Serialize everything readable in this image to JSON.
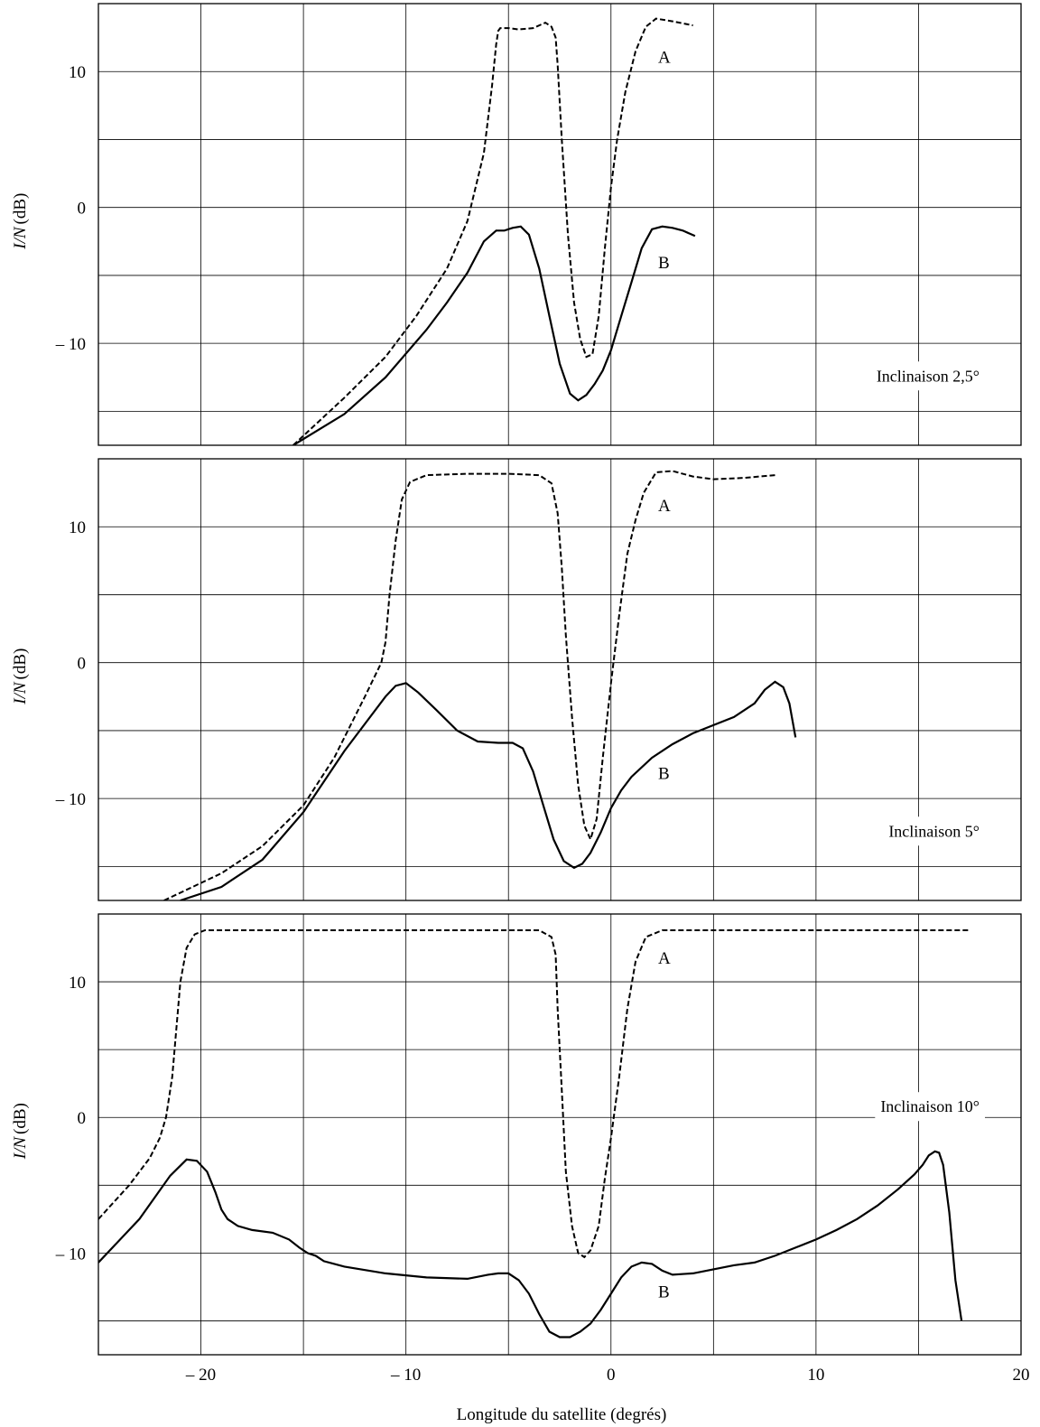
{
  "figure": {
    "xlabel": "Longitude du satellite (degrés)",
    "x_ticks": [
      "– 20",
      "– 10",
      "0",
      "10",
      "20"
    ],
    "x_tick_values": [
      -20,
      -10,
      0,
      10,
      20
    ],
    "y_ticks": [
      "10",
      "0",
      "– 10"
    ],
    "y_tick_values": [
      10,
      0,
      -10
    ]
  },
  "chart_data": [
    {
      "type": "line",
      "ylabel_italic": "I/N",
      "ylabel_unit": "(dB)",
      "annotation": "Inclinaison 2,5°",
      "xlim": [
        -25,
        20
      ],
      "ylim": [
        -17.5,
        15
      ],
      "grid": true,
      "series": [
        {
          "name": "A",
          "style": "dashed",
          "x": [
            -15.5,
            -13,
            -11,
            -9.5,
            -8,
            -7,
            -6.2,
            -5.8,
            -5.6,
            -5.5,
            -5.4,
            -5,
            -4.5,
            -3.8,
            -3.2,
            -2.9,
            -2.7,
            -2.6,
            -2.4,
            -2.1,
            -1.8,
            -1.5,
            -1.2,
            -0.9,
            -0.6,
            -0.3,
            0,
            0.3,
            0.7,
            1.2,
            1.7,
            2.2,
            3,
            4
          ],
          "y": [
            -17.5,
            -14,
            -11,
            -8,
            -4.5,
            -1,
            4,
            9,
            12,
            13,
            13.2,
            13.2,
            13.1,
            13.2,
            13.6,
            13.3,
            12.5,
            10.5,
            5,
            -2,
            -7,
            -9.7,
            -11,
            -10.8,
            -8,
            -3,
            1.5,
            5,
            8.5,
            11.5,
            13.3,
            13.9,
            13.7,
            13.4
          ]
        },
        {
          "name": "B",
          "style": "solid",
          "x": [
            -15.5,
            -13,
            -11,
            -9,
            -8,
            -7,
            -6.2,
            -5.6,
            -5.2,
            -4.8,
            -4.4,
            -4,
            -3.5,
            -3,
            -2.5,
            -2,
            -1.6,
            -1.2,
            -0.8,
            -0.4,
            0,
            0.5,
            1,
            1.5,
            2,
            2.5,
            3,
            3.5,
            4.1
          ],
          "y": [
            -17.5,
            -15.2,
            -12.5,
            -9,
            -7,
            -4.8,
            -2.5,
            -1.7,
            -1.7,
            -1.5,
            -1.4,
            -2,
            -4.5,
            -8,
            -11.5,
            -13.7,
            -14.2,
            -13.8,
            -13,
            -12,
            -10.5,
            -8,
            -5.5,
            -3,
            -1.6,
            -1.4,
            -1.5,
            -1.7,
            -2.1
          ]
        }
      ],
      "labels": [
        {
          "text": "A",
          "x": 2.3,
          "y": 11.1
        },
        {
          "text": "B",
          "x": 2.3,
          "y": -4
        }
      ]
    },
    {
      "type": "line",
      "ylabel_italic": "I/N",
      "ylabel_unit": "(dB)",
      "annotation": "Inclinaison 5°",
      "xlim": [
        -25,
        20
      ],
      "ylim": [
        -17.5,
        15
      ],
      "grid": true,
      "series": [
        {
          "name": "A",
          "style": "dashed",
          "x": [
            -21.8,
            -19,
            -17,
            -15,
            -13.5,
            -12,
            -11.2,
            -11,
            -10.8,
            -10.5,
            -10.2,
            -9.8,
            -9,
            -7,
            -5,
            -3.5,
            -2.9,
            -2.6,
            -2.4,
            -2.2,
            -1.9,
            -1.6,
            -1.3,
            -1,
            -0.7,
            -0.4,
            0,
            0.4,
            0.8,
            1.2,
            1.6,
            2.2,
            3,
            4,
            5,
            6.5,
            8
          ],
          "y": [
            -17.5,
            -15.5,
            -13.5,
            -10.5,
            -7,
            -2.5,
            0,
            1.5,
            5,
            9,
            12,
            13.3,
            13.8,
            13.9,
            13.9,
            13.8,
            13.2,
            11,
            7,
            2,
            -4,
            -9,
            -12,
            -13,
            -11.5,
            -7,
            -1.5,
            3.5,
            8,
            10.5,
            12.5,
            14,
            14.1,
            13.7,
            13.5,
            13.6,
            13.8
          ]
        },
        {
          "name": "B",
          "style": "solid",
          "x": [
            -21,
            -19,
            -17,
            -15,
            -13,
            -11,
            -10.5,
            -10,
            -9.4,
            -8.5,
            -7.5,
            -6.5,
            -5.5,
            -4.8,
            -4.3,
            -3.8,
            -3.3,
            -2.8,
            -2.3,
            -1.8,
            -1.4,
            -1,
            -0.5,
            0,
            0.5,
            1,
            2,
            3,
            4,
            5,
            6,
            7,
            7.5,
            8,
            8.4,
            8.7,
            9
          ],
          "y": [
            -17.5,
            -16.5,
            -14.5,
            -11,
            -6.5,
            -2.5,
            -1.7,
            -1.5,
            -2.2,
            -3.5,
            -5,
            -5.8,
            -5.9,
            -5.9,
            -6.3,
            -8,
            -10.5,
            -13,
            -14.6,
            -15.1,
            -14.8,
            -14,
            -12.5,
            -10.7,
            -9.4,
            -8.4,
            -7,
            -6,
            -5.2,
            -4.6,
            -4,
            -3,
            -2,
            -1.4,
            -1.8,
            -3,
            -5.5
          ]
        }
      ],
      "labels": [
        {
          "text": "A",
          "x": 2.3,
          "y": 11.6
        },
        {
          "text": "B",
          "x": 2.3,
          "y": -8.1
        }
      ]
    },
    {
      "type": "line",
      "ylabel_italic": "I/N",
      "ylabel_unit": "(dB)",
      "annotation": "Inclinaison 10°",
      "xlim": [
        -25,
        20
      ],
      "ylim": [
        -17.5,
        15
      ],
      "grid": true,
      "series": [
        {
          "name": "A",
          "style": "dashed",
          "x": [
            -25,
            -23.5,
            -22.5,
            -22,
            -21.7,
            -21.4,
            -21.2,
            -21,
            -20.7,
            -20.3,
            -19.8,
            -18,
            -15,
            -10,
            -5,
            -3.5,
            -2.9,
            -2.7,
            -2.6,
            -2.4,
            -2.2,
            -1.9,
            -1.6,
            -1.3,
            -1,
            -0.6,
            -0.3,
            0,
            0.4,
            0.8,
            1.2,
            1.7,
            2.5,
            5,
            10,
            17.5
          ],
          "y": [
            -7.5,
            -5,
            -3,
            -1.5,
            0,
            3,
            6.5,
            10,
            12.5,
            13.5,
            13.8,
            13.8,
            13.8,
            13.8,
            13.8,
            13.8,
            13.3,
            12,
            8,
            2,
            -4,
            -8,
            -10,
            -10.3,
            -9.8,
            -8,
            -4.5,
            -1.5,
            3,
            8,
            11.5,
            13.3,
            13.8,
            13.8,
            13.8,
            13.8
          ]
        },
        {
          "name": "B",
          "style": "solid",
          "x": [
            -25,
            -23,
            -21.5,
            -20.7,
            -20.2,
            -19.7,
            -19.3,
            -19,
            -18.7,
            -18.2,
            -17.5,
            -16.5,
            -15.7,
            -15.2,
            -14.8,
            -14.4,
            -14,
            -13,
            -11,
            -9,
            -7,
            -6,
            -5.5,
            -5,
            -4.5,
            -4,
            -3.5,
            -3,
            -2.5,
            -2,
            -1.5,
            -1,
            -0.5,
            0,
            0.5,
            1,
            1.5,
            2,
            2.5,
            3,
            4,
            5,
            6,
            7,
            8,
            9,
            10,
            11,
            12,
            13,
            14,
            14.8,
            15.2,
            15.5,
            15.8,
            16,
            16.2,
            16.5,
            16.8,
            17.1
          ],
          "y": [
            -10.7,
            -7.5,
            -4.3,
            -3.1,
            -3.2,
            -4,
            -5.5,
            -6.8,
            -7.5,
            -8,
            -8.3,
            -8.5,
            -9,
            -9.6,
            -10,
            -10.2,
            -10.6,
            -11,
            -11.5,
            -11.8,
            -11.9,
            -11.6,
            -11.5,
            -11.5,
            -12,
            -13,
            -14.5,
            -15.8,
            -16.2,
            -16.2,
            -15.8,
            -15.2,
            -14.2,
            -13,
            -11.8,
            -11,
            -10.7,
            -10.8,
            -11.3,
            -11.6,
            -11.5,
            -11.2,
            -10.9,
            -10.7,
            -10.2,
            -9.6,
            -9,
            -8.3,
            -7.5,
            -6.5,
            -5.3,
            -4.2,
            -3.5,
            -2.8,
            -2.5,
            -2.6,
            -3.5,
            -7,
            -12,
            -15
          ]
        }
      ],
      "labels": [
        {
          "text": "A",
          "x": 2.3,
          "y": 11.8
        },
        {
          "text": "B",
          "x": 2.3,
          "y": -12.8
        }
      ]
    }
  ]
}
